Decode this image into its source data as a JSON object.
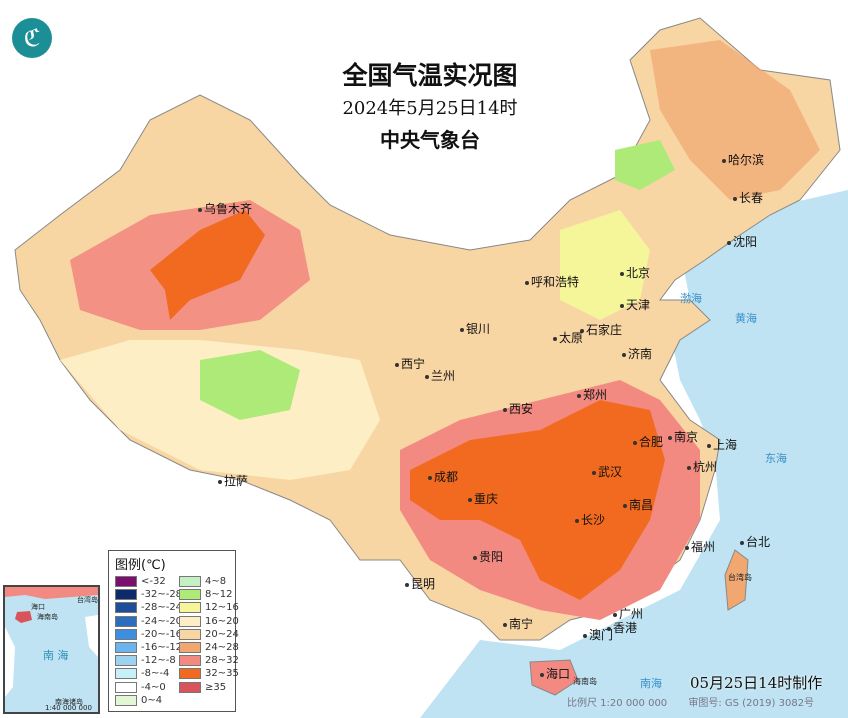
{
  "header": {
    "title": "全国气温实况图",
    "datetime": "2024年5月25日14时",
    "issuer": "中央气象台"
  },
  "logo_icon": "cma-logo",
  "legend": {
    "title": "图例(℃)",
    "items": [
      {
        "label": "<-32",
        "color": "#7b0f6e"
      },
      {
        "label": "-32~-28",
        "color": "#0d2a6b"
      },
      {
        "label": "-28~-24",
        "color": "#1e4d99"
      },
      {
        "label": "-24~-20",
        "color": "#2c6dc0"
      },
      {
        "label": "-20~-16",
        "color": "#3e8ee0"
      },
      {
        "label": "-16~-12",
        "color": "#6cb4ee"
      },
      {
        "label": "-12~-8",
        "color": "#9dd3ef"
      },
      {
        "label": "-8~-4",
        "color": "#c8f0f8"
      },
      {
        "label": "-4~0",
        "color": "#ffffff"
      },
      {
        "label": "0~4",
        "color": "#e2f7d4"
      },
      {
        "label": "4~8",
        "color": "#c5f0c4"
      },
      {
        "label": "8~12",
        "color": "#aeea78"
      },
      {
        "label": "12~16",
        "color": "#f5f59a"
      },
      {
        "label": "16~20",
        "color": "#fdeec5"
      },
      {
        "label": "20~24",
        "color": "#f8d6a4"
      },
      {
        "label": "24~28",
        "color": "#f1a770"
      },
      {
        "label": "28~32",
        "color": "#f28a82"
      },
      {
        "label": "32~35",
        "color": "#f26a1f"
      },
      {
        "label": "≥35",
        "color": "#d9535a"
      }
    ]
  },
  "cities": [
    "乌鲁木齐",
    "哈尔滨",
    "长春",
    "沈阳",
    "呼和浩特",
    "北京",
    "天津",
    "石家庄",
    "太原",
    "银川",
    "西宁",
    "兰州",
    "济南",
    "郑州",
    "西安",
    "合肥",
    "南京",
    "上海",
    "杭州",
    "武汉",
    "成都",
    "重庆",
    "拉萨",
    "南昌",
    "长沙",
    "福州",
    "台北",
    "贵阳",
    "昆明",
    "广州",
    "南宁",
    "澳门",
    "香港",
    "海口"
  ],
  "islands": {
    "hainan": "海南岛",
    "taiwan": "台湾岛"
  },
  "seas": [
    "渤海",
    "黄海",
    "东海",
    "南海"
  ],
  "inset": {
    "haikou": "海口",
    "hainan": "海南岛",
    "taiwan": "台湾岛",
    "sea": "南 海",
    "islands": "南海诸岛",
    "scale": "1:40 000 000"
  },
  "footer": {
    "made": "05月25日14时制作",
    "scale": "比例尺 1:20 000 000",
    "review": "审图号: GS (2019) 3082号"
  }
}
